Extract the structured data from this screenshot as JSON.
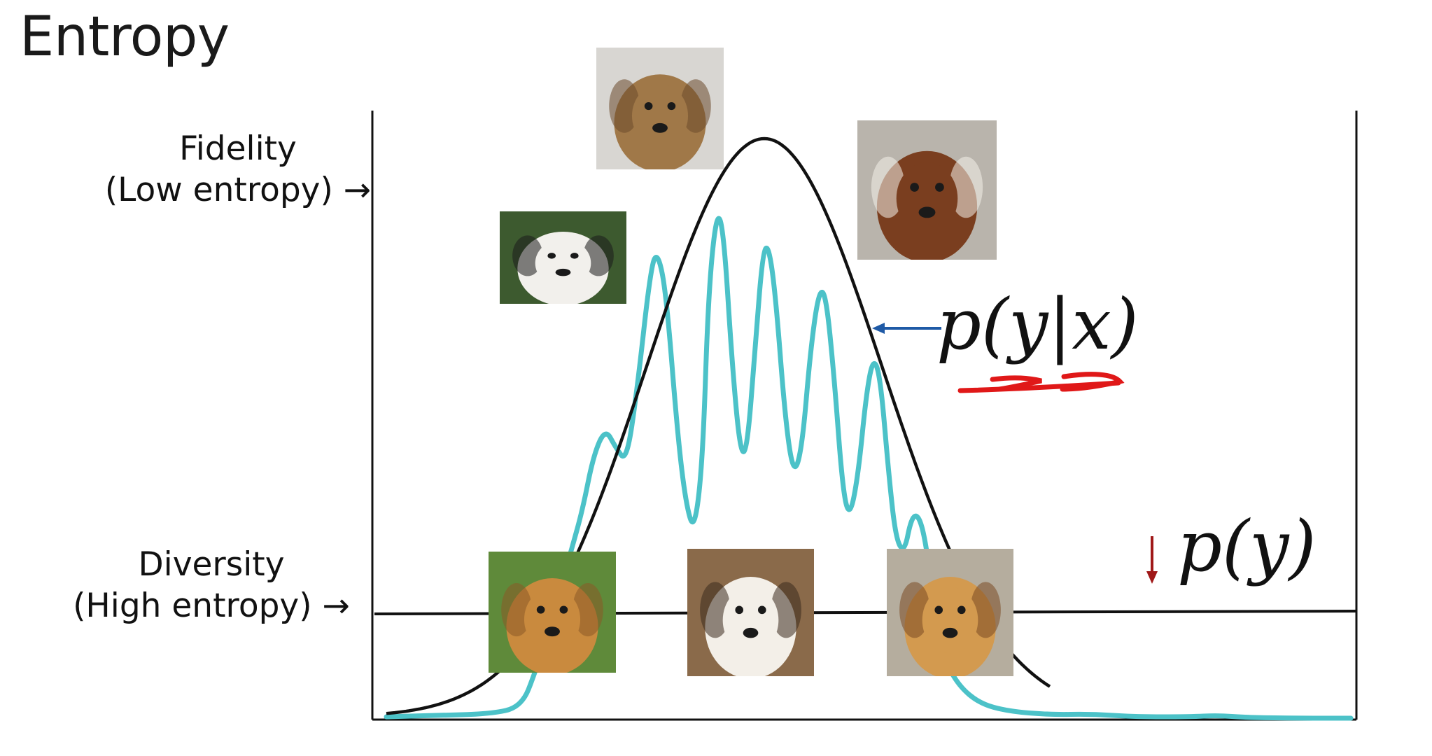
{
  "title": "Entropy",
  "fidelity": {
    "line1": "Fidelity",
    "line2": "(Low entropy) →"
  },
  "diversity": {
    "line1": "Diversity",
    "line2": "(High entropy) →"
  },
  "conditional_label": "p(y|x)",
  "marginal_label": "p(y)",
  "colors": {
    "conditional_curve": "#4cc2c8",
    "marginal_curve": "#111111",
    "conditional_arrow": "#1f5aa6",
    "marginal_arrow": "#a01818",
    "annotation_scribble": "#e01818"
  },
  "photos": [
    {
      "name": "golden-retriever-senior-photo",
      "palette": [
        "#d8d6d2",
        "#a07848",
        "#6b4a2b"
      ]
    },
    {
      "name": "white-dog-photo",
      "palette": [
        "#3d5a2f",
        "#f2f0ec",
        "#1b1b1b"
      ]
    },
    {
      "name": "saint-bernard-photo",
      "palette": [
        "#b9b4ac",
        "#7a3e1f",
        "#f4f0ea"
      ]
    },
    {
      "name": "golden-retrievers-on-grass-photo",
      "palette": [
        "#5f8a3a",
        "#c98a3e",
        "#8a5a26"
      ]
    },
    {
      "name": "sheltie-photo",
      "palette": [
        "#8a6a4a",
        "#f3efe8",
        "#3a2a1e"
      ]
    },
    {
      "name": "golden-retriever-profile-photo",
      "palette": [
        "#b5ad9e",
        "#d39a4f",
        "#7a4a24"
      ]
    }
  ]
}
